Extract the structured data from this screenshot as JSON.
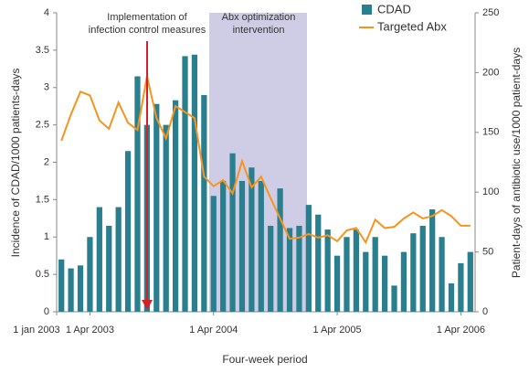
{
  "chart_data": {
    "type": "bar_line",
    "categories": [
      "1 jan 2003",
      null,
      null,
      "1 Apr 2003",
      null,
      null,
      null,
      null,
      null,
      null,
      null,
      null,
      null,
      null,
      null,
      null,
      "1 Apr 2004",
      null,
      null,
      null,
      null,
      null,
      null,
      null,
      null,
      null,
      null,
      null,
      null,
      "1 Apr 2005",
      null,
      null,
      null,
      null,
      null,
      null,
      null,
      null,
      null,
      null,
      null,
      null,
      "1 Apr 2006",
      null
    ],
    "series": [
      {
        "name": "CDAD",
        "color": "#2a7f8f",
        "values": [
          0.7,
          0.58,
          0.62,
          1.0,
          1.4,
          1.15,
          1.4,
          2.15,
          3.15,
          2.5,
          2.78,
          2.5,
          2.83,
          3.42,
          3.44,
          2.9,
          1.55,
          1.75,
          2.12,
          1.75,
          1.93,
          1.75,
          1.15,
          1.65,
          1.12,
          1.15,
          1.43,
          1.3,
          1.1,
          0.75,
          1.0,
          1.1,
          0.8,
          1.0,
          0.75,
          0.35,
          0.8,
          1.05,
          1.15,
          1.37,
          1.0,
          0.38,
          0.65,
          0.8
        ]
      },
      {
        "name": "Targeted Abx",
        "color": "#f7941d",
        "axis": "y2",
        "values": [
          143,
          165,
          184,
          181,
          160,
          153,
          175,
          158,
          152,
          197,
          162,
          145,
          172,
          167,
          162,
          113,
          105,
          110,
          99,
          126,
          104,
          113,
          95,
          78,
          61,
          62,
          65,
          62,
          64,
          59,
          68,
          70,
          58,
          77,
          70,
          71,
          78,
          83,
          78,
          80,
          85,
          80,
          72,
          72
        ]
      }
    ],
    "ylim": [
      0,
      4
    ],
    "yticks": [
      0,
      0.5,
      1,
      1.5,
      2,
      2.5,
      3,
      3.5,
      4
    ],
    "y2lim": [
      0,
      250
    ],
    "y2ticks": [
      0,
      50,
      100,
      150,
      200,
      250
    ],
    "xlabel": "Four-week period",
    "ylabel": "Incidence of CDAD/1000 patients-days",
    "y2label": "Patient-days of antibiotic use/1000 patient-days",
    "annotations": [
      {
        "lines": [
          "Implementation of",
          "infection control measures"
        ]
      },
      {
        "lines": [
          "Abx optimization",
          "intervention"
        ]
      }
    ],
    "legend": "top-right"
  }
}
